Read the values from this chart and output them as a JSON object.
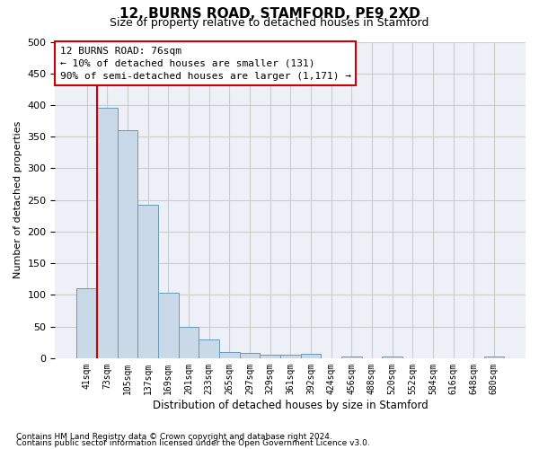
{
  "title": "12, BURNS ROAD, STAMFORD, PE9 2XD",
  "subtitle": "Size of property relative to detached houses in Stamford",
  "xlabel": "Distribution of detached houses by size in Stamford",
  "ylabel": "Number of detached properties",
  "footnote1": "Contains HM Land Registry data © Crown copyright and database right 2024.",
  "footnote2": "Contains public sector information licensed under the Open Government Licence v3.0.",
  "bar_labels": [
    "41sqm",
    "73sqm",
    "105sqm",
    "137sqm",
    "169sqm",
    "201sqm",
    "233sqm",
    "265sqm",
    "297sqm",
    "329sqm",
    "361sqm",
    "392sqm",
    "424sqm",
    "456sqm",
    "488sqm",
    "520sqm",
    "552sqm",
    "584sqm",
    "616sqm",
    "648sqm",
    "680sqm"
  ],
  "bar_values": [
    110,
    395,
    360,
    243,
    104,
    50,
    29,
    10,
    8,
    5,
    5,
    7,
    0,
    3,
    0,
    3,
    0,
    0,
    0,
    0,
    3
  ],
  "bar_color": "#c9d9e8",
  "bar_edge_color": "#6699bb",
  "ylim": [
    0,
    500
  ],
  "yticks": [
    0,
    50,
    100,
    150,
    200,
    250,
    300,
    350,
    400,
    450,
    500
  ],
  "red_line_x": 0.5,
  "annotation_box_text": "12 BURNS ROAD: 76sqm\n← 10% of detached houses are smaller (131)\n90% of semi-detached houses are larger (1,171) →",
  "red_line_color": "#cc0000",
  "grid_color": "#cccccc",
  "background_color": "#eef0f8",
  "title_fontsize": 11,
  "subtitle_fontsize": 9
}
